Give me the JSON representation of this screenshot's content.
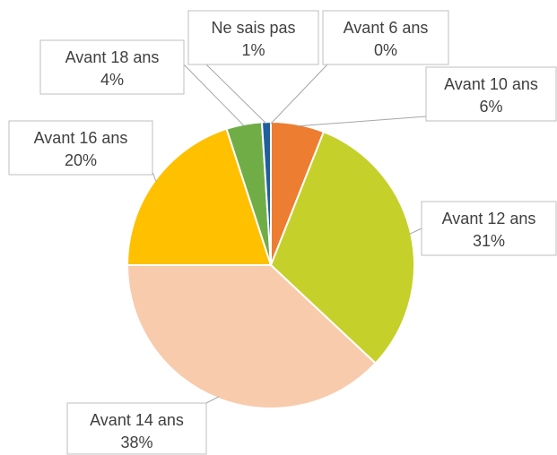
{
  "chart_data": {
    "type": "pie",
    "categories": [
      "Avant 6 ans",
      "Avant 10 ans",
      "Avant 12 ans",
      "Avant 14 ans",
      "Avant 16 ans",
      "Avant 18 ans",
      "Ne sais pas"
    ],
    "values": [
      0,
      6,
      31,
      38,
      20,
      4,
      1
    ],
    "value_labels": [
      "0%",
      "6%",
      "31%",
      "38%",
      "20%",
      "4%",
      "1%"
    ],
    "colors": [
      "#5b9bd5",
      "#ed7d31",
      "#c5d02a",
      "#f8cbad",
      "#ffc000",
      "#70ad47",
      "#1f5f9e"
    ]
  }
}
